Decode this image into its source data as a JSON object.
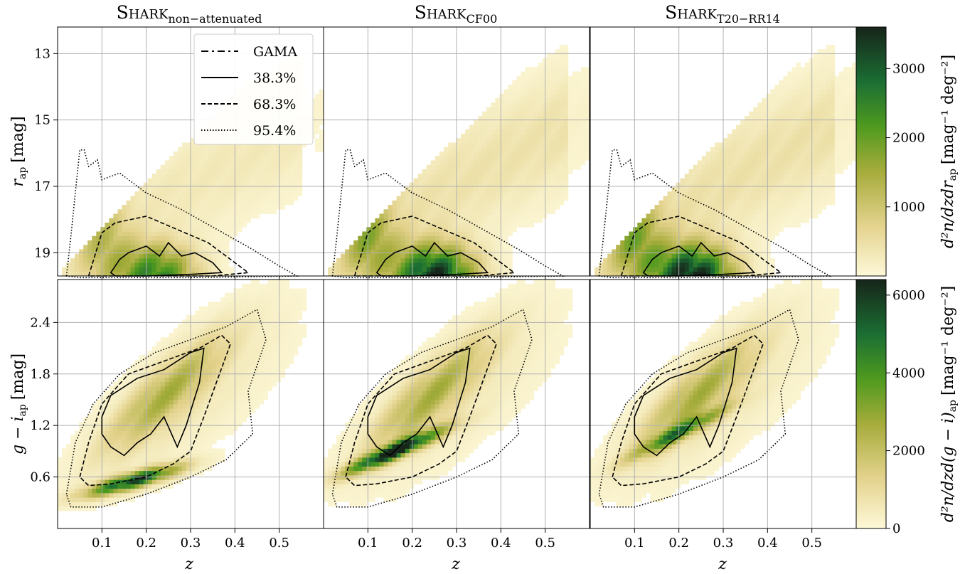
{
  "chart_data": [
    {
      "type": "heatmap",
      "row": "r",
      "title_main": "Shark",
      "title_sub": "non−attenuated",
      "xlabel": "",
      "ylabel_main": "r",
      "ylabel_sub": "ap",
      "ylabel_unit": "[mag]",
      "xlim": [
        0,
        0.6
      ],
      "ylim": [
        19.7,
        12.2
      ],
      "xticks": [
        "0.1",
        "0.2",
        "0.3",
        "0.4",
        "0.5"
      ],
      "yticks": [
        "13",
        "15",
        "17",
        "19"
      ],
      "density_peak": {
        "x": 0.22,
        "y": 19.6
      },
      "legend": {
        "placement": "top-center",
        "entries": [
          {
            "label": "GAMA",
            "style": "dashdot"
          },
          {
            "label": "38.3%",
            "style": "solid"
          },
          {
            "label": "68.3%",
            "style": "dashed"
          },
          {
            "label": "95.4%",
            "style": "dotted"
          }
        ]
      }
    },
    {
      "type": "heatmap",
      "row": "r",
      "title_main": "Shark",
      "title_sub": "CF00",
      "xlabel": "",
      "xlim": [
        0,
        0.6
      ],
      "ylim": [
        19.7,
        12.2
      ],
      "xticks": [
        "0.1",
        "0.2",
        "0.3",
        "0.4",
        "0.5"
      ],
      "density_peak": {
        "x": 0.24,
        "y": 19.6
      }
    },
    {
      "type": "heatmap",
      "row": "r",
      "title_main": "Shark",
      "title_sub": "T20−RR14",
      "xlabel": "",
      "xlim": [
        0,
        0.6
      ],
      "ylim": [
        19.7,
        12.2
      ],
      "xticks": [
        "0.1",
        "0.2",
        "0.3",
        "0.4",
        "0.5"
      ],
      "density_peak": {
        "x": 0.23,
        "y": 19.6
      },
      "colorbar": {
        "ticks": [
          "1000",
          "2000",
          "3000"
        ],
        "tick_values": [
          1000,
          2000,
          3000
        ],
        "range": [
          0,
          3600
        ],
        "label": "d²n/dzdr",
        "label_sub": "ap",
        "label_unit": "[mag⁻¹ deg⁻²]"
      }
    },
    {
      "type": "heatmap",
      "row": "gi",
      "xlabel": "z",
      "ylabel_main": "g − i",
      "ylabel_sub": "ap",
      "ylabel_unit": "[mag]",
      "xlim": [
        0,
        0.6
      ],
      "ylim": [
        0,
        2.9
      ],
      "xticks": [
        "0.1",
        "0.2",
        "0.3",
        "0.4",
        "0.5"
      ],
      "yticks": [
        "0.6",
        "1.2",
        "1.8",
        "2.4"
      ],
      "density_peak": {
        "x": 0.18,
        "y": 0.55
      }
    },
    {
      "type": "heatmap",
      "row": "gi",
      "xlabel": "z",
      "xlim": [
        0,
        0.6
      ],
      "ylim": [
        0,
        2.9
      ],
      "xticks": [
        "0.1",
        "0.2",
        "0.3",
        "0.4",
        "0.5"
      ],
      "density_peak": {
        "x": 0.16,
        "y": 0.85
      }
    },
    {
      "type": "heatmap",
      "row": "gi",
      "xlabel": "z",
      "xlim": [
        0,
        0.6
      ],
      "ylim": [
        0,
        2.9
      ],
      "xticks": [
        "0.1",
        "0.2",
        "0.3",
        "0.4",
        "0.5"
      ],
      "density_peak": {
        "x": 0.2,
        "y": 1.05
      },
      "colorbar": {
        "ticks": [
          "0",
          "2000",
          "4000",
          "6000"
        ],
        "tick_values": [
          0,
          2000,
          4000,
          6000
        ],
        "range": [
          0,
          6400
        ],
        "label": "d²n/dzd(g − i)",
        "label_sub": "ap",
        "label_unit": "[mag⁻¹ deg⁻²]"
      }
    }
  ],
  "colors": {
    "low": "#fdf8d8",
    "mid": "#8aa316",
    "high": "#17301d",
    "grid": "#b0b0b0"
  }
}
